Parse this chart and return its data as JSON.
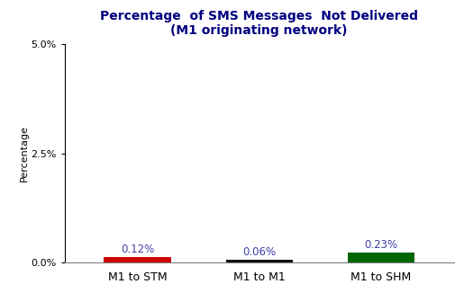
{
  "title_line1": "Percentage  of SMS Messages  Not Delivered",
  "title_line2": "(M1 originating network)",
  "categories": [
    "M1 to STM",
    "M1 to M1",
    "M1 to SHM"
  ],
  "values": [
    0.12,
    0.06,
    0.23
  ],
  "bar_colors": [
    "#cc0000",
    "#111111",
    "#006600"
  ],
  "ylabel": "Percentage",
  "ylim": [
    0,
    5.0
  ],
  "yticks": [
    0.0,
    2.5,
    5.0
  ],
  "ytick_labels": [
    "0.0%",
    "2.5%",
    "5.0%"
  ],
  "bar_width": 0.55,
  "title_color": "#000080",
  "label_color": "#4040aa",
  "background_color": "#ffffff",
  "title_fontsize": 10,
  "ylabel_fontsize": 8,
  "xlabel_fontsize": 9,
  "annotation_fontsize": 8.5,
  "figsize": [
    5.15,
    3.26
  ],
  "dpi": 100
}
